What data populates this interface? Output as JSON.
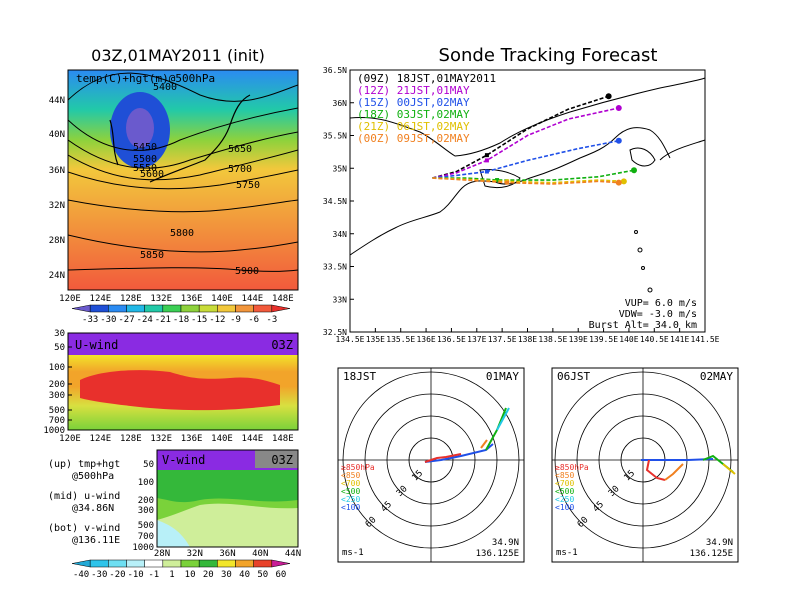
{
  "titles": {
    "left": "03Z,01MAY2011 (init)",
    "right": "Sonde Tracking Forecast"
  },
  "chart_data": [
    {
      "type": "heatmap",
      "name": "upper-level map",
      "overlay_label": "temp(C)+hgt(m)@500hPa",
      "xticks": [
        "120E",
        "124E",
        "128E",
        "132E",
        "136E",
        "140E",
        "144E",
        "148E"
      ],
      "yticks": [
        "24N",
        "28N",
        "32N",
        "36N",
        "40N",
        "44N"
      ],
      "xlim": [
        120,
        150
      ],
      "ylim": [
        22,
        47
      ],
      "contour_labels": [
        "5400",
        "5450",
        "5500",
        "5550",
        "5600",
        "5650",
        "5700",
        "5750",
        "5800",
        "5850",
        "5900"
      ],
      "colorbar": {
        "labels": [
          "-33",
          "-30",
          "-27",
          "-24",
          "-21",
          "-18",
          "-15",
          "-12",
          "-9",
          "-6",
          "-3"
        ],
        "colors": [
          "#6a5acd",
          "#1f4fd6",
          "#2b8bf2",
          "#22b8e6",
          "#22c9a8",
          "#3ccf55",
          "#8ed23c",
          "#c8dc3a",
          "#f2c83c",
          "#f2963c",
          "#f25a3c",
          "#e8302c"
        ]
      }
    },
    {
      "type": "heatmap",
      "name": "u-wind cross-section",
      "label": "U-wind",
      "time": "03Z",
      "yticks": [
        "30",
        "50",
        "100",
        "200",
        "300",
        "500",
        "700",
        "1000"
      ],
      "xticks": [
        "120E",
        "124E",
        "128E",
        "132E",
        "136E",
        "140E",
        "144E",
        "148E"
      ]
    },
    {
      "type": "heatmap",
      "name": "v-wind cross-section",
      "label": "V-wind",
      "time": "03Z",
      "yticks": [
        "50",
        "100",
        "200",
        "300",
        "500",
        "700",
        "1000"
      ],
      "xticks": [
        "28N",
        "32N",
        "36N",
        "40N",
        "44N"
      ],
      "colorbar": {
        "labels": [
          "-40",
          "-30",
          "-20",
          "-10",
          "-1",
          "1",
          "10",
          "20",
          "30",
          "40",
          "50",
          "60"
        ],
        "colors": [
          "#22a9d6",
          "#2ec4ea",
          "#6edff2",
          "#b8f0f8",
          "#ffffff",
          "#cfee9a",
          "#7ad23a",
          "#34b83a",
          "#f2e62a",
          "#f2a42a",
          "#e8422a",
          "#c81e96"
        ]
      }
    },
    {
      "type": "line",
      "name": "sonde tracking forecast map",
      "xticks": [
        "134.5E",
        "135E",
        "135.5E",
        "136E",
        "136.5E",
        "137E",
        "137.5E",
        "138E",
        "138.5E",
        "139E",
        "139.5E",
        "140E",
        "140.5E",
        "141E",
        "141.5E"
      ],
      "yticks": [
        "32.5N",
        "33N",
        "33.5N",
        "34N",
        "34.5N",
        "35N",
        "35.5N",
        "36N",
        "36.5N"
      ],
      "xlim": [
        134.5,
        141.5
      ],
      "ylim": [
        32.5,
        36.5
      ],
      "series": [
        {
          "name": "(09Z)  18JST,01MAY2011",
          "color": "#000000",
          "x": [
            136.125,
            136.6,
            137.2,
            138.0,
            138.8,
            139.6
          ],
          "y": [
            34.85,
            34.95,
            35.2,
            35.6,
            35.9,
            36.1
          ]
        },
        {
          "name": "(12Z)  21JST,01MAY",
          "color": "#b000d0",
          "x": [
            136.125,
            136.6,
            137.2,
            138.0,
            138.8,
            139.8
          ],
          "y": [
            34.85,
            34.93,
            35.12,
            35.5,
            35.75,
            35.92
          ]
        },
        {
          "name": "(15Z)  00JST,02MAY",
          "color": "#2050e8",
          "x": [
            136.125,
            136.7,
            137.2,
            138.0,
            139.0,
            139.8
          ],
          "y": [
            34.85,
            34.9,
            34.95,
            35.12,
            35.3,
            35.42
          ]
        },
        {
          "name": "(18Z)  03JST,02MAY",
          "color": "#10b010",
          "x": [
            136.125,
            136.8,
            137.4,
            138.5,
            139.4,
            140.1
          ],
          "y": [
            34.85,
            34.85,
            34.82,
            34.82,
            34.87,
            34.97
          ]
        },
        {
          "name": "(21Z)  06JST,02MAY",
          "color": "#e0c000",
          "x": [
            136.125,
            136.8,
            137.6,
            138.5,
            139.4,
            139.9
          ],
          "y": [
            34.85,
            34.83,
            34.8,
            34.78,
            34.82,
            34.8
          ]
        },
        {
          "name": "(00Z)  09JST,02MAY",
          "color": "#f08020",
          "x": [
            136.125,
            136.8,
            137.6,
            138.5,
            139.4,
            139.8
          ],
          "y": [
            34.85,
            34.82,
            34.78,
            34.76,
            34.8,
            34.78
          ]
        }
      ],
      "params": {
        "vup": "VUP=  6.0  m/s",
        "vdw": "VDW=  -3.0  m/s",
        "burst": "Burst Alt=  34.0  km"
      }
    },
    {
      "type": "line",
      "name": "hodograph 18JST",
      "time_label": "18JST",
      "date_label": "01MAY",
      "radius_labels": [
        "15",
        "30",
        "45",
        "60"
      ],
      "legend": [
        "≥850hPa",
        "<850",
        "<700",
        "<500",
        "<250",
        "<100"
      ],
      "legend_colors": [
        "#e8302c",
        "#f08020",
        "#e0c000",
        "#10b010",
        "#22c9e6",
        "#2050e8"
      ],
      "units": "ms-1",
      "lat": "34.9N",
      "lon": "136.125E"
    },
    {
      "type": "line",
      "name": "hodograph 06JST",
      "time_label": "06JST",
      "date_label": "02MAY",
      "radius_labels": [
        "15",
        "30",
        "45",
        "60"
      ],
      "legend": [
        "≥850hPa",
        "<850",
        "<700",
        "<500",
        "<250",
        "<100"
      ],
      "legend_colors": [
        "#e8302c",
        "#f08020",
        "#e0c000",
        "#10b010",
        "#22c9e6",
        "#2050e8"
      ],
      "units": "ms-1",
      "lat": "34.9N",
      "lon": "136.125E"
    }
  ],
  "side_notes": {
    "up": "(up) tmp+hgt",
    "up2": "@500hPa",
    "mid": "(mid) u-wind",
    "mid2": "@34.86N",
    "bot": "(bot) v-wind",
    "bot2": "@136.11E"
  }
}
